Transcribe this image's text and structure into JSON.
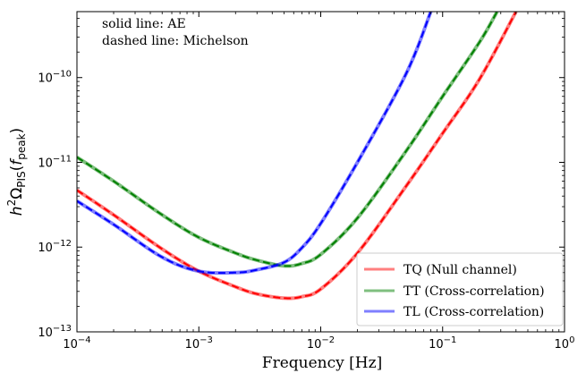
{
  "chart_data": {
    "type": "line",
    "title": "",
    "xlabel": "Frequency [Hz]",
    "ylabel_parts": {
      "h": "h",
      "sup": "2",
      "omega": "Ω",
      "sub": "PIS",
      "open": "(",
      "f": "f",
      "fsub": "peak",
      "close": ")"
    },
    "x_scale": "log",
    "y_scale": "log",
    "xlim": [
      0.0001,
      1
    ],
    "ylim": [
      1e-13,
      6e-10
    ],
    "x_ticks": [
      {
        "value": 0.0001,
        "base": "10",
        "exp": "−4"
      },
      {
        "value": 0.001,
        "base": "10",
        "exp": "−3"
      },
      {
        "value": 0.01,
        "base": "10",
        "exp": "−2"
      },
      {
        "value": 0.1,
        "base": "10",
        "exp": "−1"
      },
      {
        "value": 1,
        "base": "10",
        "exp": "0"
      }
    ],
    "y_ticks": [
      {
        "value": 1e-13,
        "base": "10",
        "exp": "−13"
      },
      {
        "value": 1e-12,
        "base": "10",
        "exp": "−12"
      },
      {
        "value": 1e-11,
        "base": "10",
        "exp": "−11"
      },
      {
        "value": 1e-10,
        "base": "10",
        "exp": "−10"
      }
    ],
    "annotations": [
      "solid line: AE",
      "dashed line: Michelson"
    ],
    "legend_position": "bottom-right",
    "series": [
      {
        "name": "TQ (Null channel)",
        "color": "#ff0000",
        "points": [
          [
            0.0001,
            4.7e-12
          ],
          [
            0.0002,
            2.4e-12
          ],
          [
            0.0005,
            9.5e-13
          ],
          [
            0.001,
            5.2e-13
          ],
          [
            0.002,
            3.4e-13
          ],
          [
            0.003,
            2.8e-13
          ],
          [
            0.005,
            2.5e-13
          ],
          [
            0.007,
            2.6e-13
          ],
          [
            0.01,
            3.2e-13
          ],
          [
            0.02,
            8.5e-13
          ],
          [
            0.05,
            5.2e-12
          ],
          [
            0.1,
            2.2e-11
          ],
          [
            0.2,
            9.5e-11
          ],
          [
            0.4,
            6e-10
          ]
        ]
      },
      {
        "name": "TT (Cross-correlation)",
        "color": "#008000",
        "points": [
          [
            0.0001,
            1.15e-11
          ],
          [
            0.0002,
            6e-12
          ],
          [
            0.0005,
            2.4e-12
          ],
          [
            0.001,
            1.3e-12
          ],
          [
            0.002,
            8.5e-13
          ],
          [
            0.003,
            7e-13
          ],
          [
            0.005,
            6e-13
          ],
          [
            0.007,
            6.4e-13
          ],
          [
            0.01,
            8.2e-13
          ],
          [
            0.02,
            2.2e-12
          ],
          [
            0.05,
            1.35e-11
          ],
          [
            0.1,
            6e-11
          ],
          [
            0.2,
            2.6e-10
          ],
          [
            0.28,
            6e-10
          ]
        ]
      },
      {
        "name": "TL (Cross-correlation)",
        "color": "#0000ff",
        "points": [
          [
            0.0001,
            3.5e-12
          ],
          [
            0.0002,
            1.85e-12
          ],
          [
            0.0005,
            7.6e-13
          ],
          [
            0.001,
            5.2e-13
          ],
          [
            0.002,
            5e-13
          ],
          [
            0.003,
            5.4e-13
          ],
          [
            0.005,
            6.6e-13
          ],
          [
            0.007,
            9.8e-13
          ],
          [
            0.01,
            1.9e-12
          ],
          [
            0.02,
            1e-11
          ],
          [
            0.05,
            1.1e-10
          ],
          [
            0.08,
            6e-10
          ]
        ]
      }
    ]
  }
}
